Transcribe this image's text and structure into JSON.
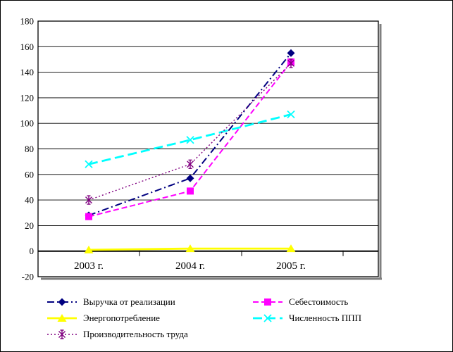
{
  "chart_data": {
    "type": "line",
    "categories": [
      "2003 г.",
      "2004 г.",
      "2005 г."
    ],
    "yticks": [
      180,
      160,
      140,
      120,
      100,
      80,
      60,
      40,
      20,
      0,
      -20
    ],
    "ylim": [
      -20,
      180
    ],
    "ytick_step": 20,
    "grid": "horizontal",
    "legend_position": "bottom-two-columns",
    "background_color": "#ffffff",
    "axis_color": "#000000",
    "frame_shadow_color": "#808080",
    "series": [
      {
        "name": "Выручка от реализации",
        "color": "#000080",
        "marker": "diamond",
        "line_style": "dashdot",
        "values": [
          28,
          57,
          155
        ]
      },
      {
        "name": "Себестоимость",
        "color": "#ff00ff",
        "marker": "square",
        "line_style": "dash",
        "values": [
          27,
          47,
          148
        ]
      },
      {
        "name": "Энергопотребление",
        "color": "#ffff00",
        "marker": "triangle",
        "line_style": "solid",
        "values": [
          1,
          2,
          2
        ]
      },
      {
        "name": "Численность ППП",
        "color": "#00ffff",
        "marker": "x",
        "line_style": "longdash",
        "values": [
          68,
          87,
          107
        ]
      },
      {
        "name": "Производительность труда",
        "color": "#800080",
        "marker": "asterisk",
        "line_style": "dot",
        "values": [
          40,
          68,
          147
        ]
      }
    ]
  }
}
